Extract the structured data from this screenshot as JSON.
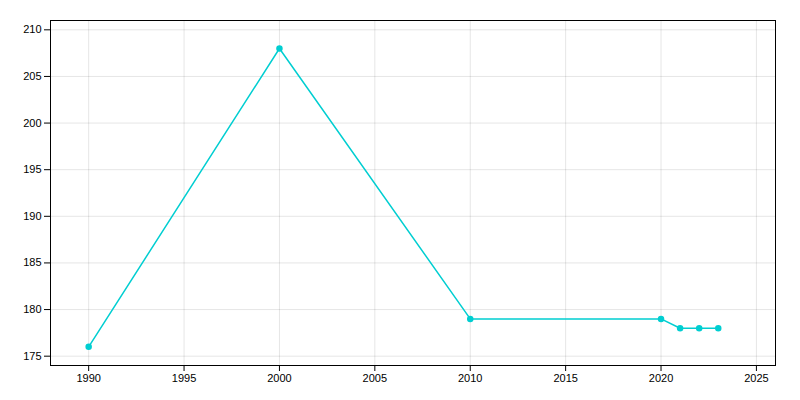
{
  "chart_data": {
    "type": "line",
    "x": [
      1990,
      2000,
      2010,
      2020,
      2021,
      2022,
      2023
    ],
    "values": [
      176,
      208,
      179,
      179,
      178,
      178,
      178
    ],
    "color": "#00CED1",
    "marker": "circle",
    "xlim": [
      1988,
      2026
    ],
    "ylim": [
      174,
      211
    ],
    "xticks": [
      1990,
      1995,
      2000,
      2005,
      2010,
      2015,
      2020,
      2025
    ],
    "yticks": [
      175,
      180,
      185,
      190,
      195,
      200,
      205,
      210
    ],
    "grid": true
  }
}
